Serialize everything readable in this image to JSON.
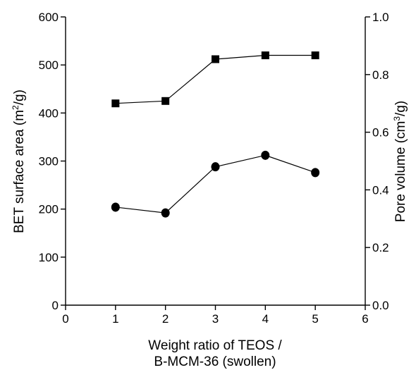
{
  "chart_data": {
    "type": "scatter",
    "title": "",
    "xlabel_lines": [
      "Weight ratio of TEOS /",
      "B-MCM-36 (swollen)"
    ],
    "ylabel_left": {
      "text": "BET surface area (m",
      "sup": "2",
      "tail": "/g)"
    },
    "ylabel_right": {
      "text": "Pore volume (cm",
      "sup": "3",
      "tail": "/g)"
    },
    "xlim": [
      0,
      6
    ],
    "ylim_left": [
      0,
      600
    ],
    "ylim_right": [
      0.0,
      1.0
    ],
    "x_ticks": [
      "0",
      "1",
      "2",
      "3",
      "4",
      "5",
      "6"
    ],
    "y_left_ticks": [
      "0",
      "100",
      "200",
      "300",
      "400",
      "500",
      "600"
    ],
    "y_right_ticks": [
      "0.0",
      "0.2",
      "0.4",
      "0.6",
      "0.8",
      "1.0"
    ],
    "grid": false,
    "series": [
      {
        "axis": "left",
        "marker": "square",
        "color": "#000000",
        "x": [
          1,
          2,
          3,
          4,
          5
        ],
        "y": [
          420,
          425,
          512,
          520,
          520
        ]
      },
      {
        "axis": "right",
        "marker": "circle",
        "color": "#000000",
        "x": [
          1,
          2,
          3,
          4,
          5
        ],
        "y": [
          0.34,
          0.32,
          0.48,
          0.52,
          0.46
        ]
      }
    ]
  }
}
